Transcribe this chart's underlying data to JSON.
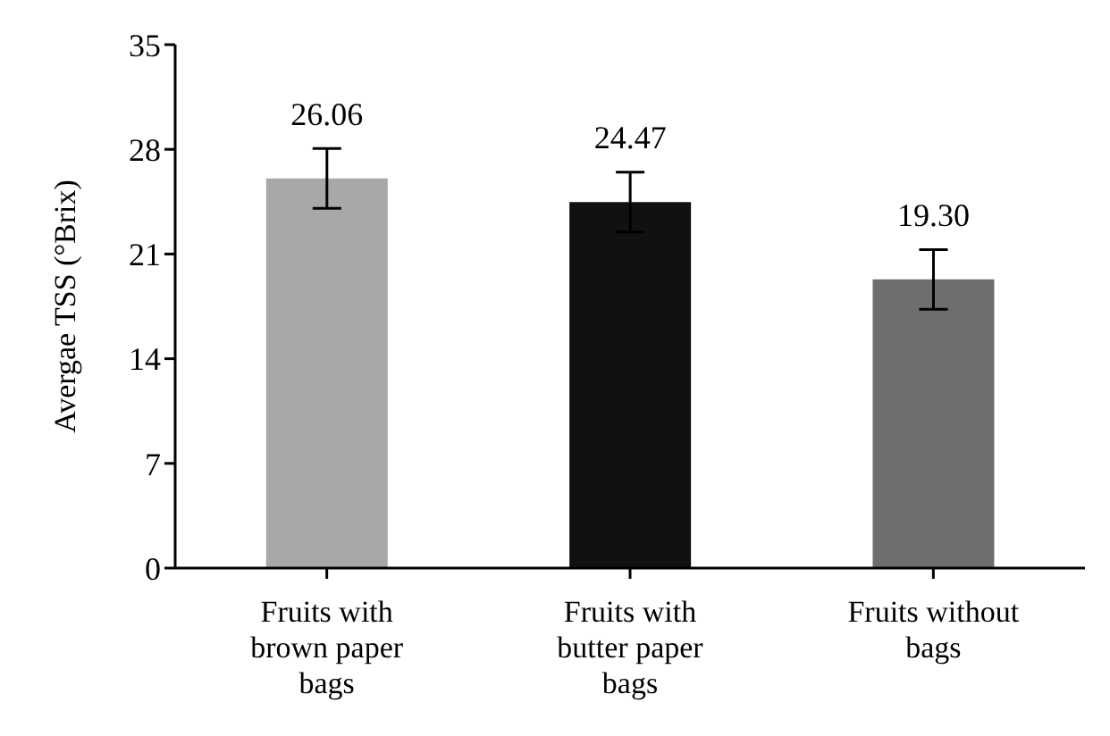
{
  "chart_data": {
    "type": "bar",
    "ylabel": "Avergae TSS (°Brix)",
    "categories": [
      "Fruits with brown paper bags",
      "Fruits with butter paper bags",
      "Fruits without bags"
    ],
    "values": [
      26.06,
      24.47,
      19.3
    ],
    "value_labels": [
      "26.06",
      "24.47",
      "19.30"
    ],
    "errors": [
      2.0,
      2.0,
      2.0
    ],
    "colors": [
      "#a8a8a8",
      "#111111",
      "#6e6e6e"
    ],
    "ylim": [
      0,
      35
    ],
    "yticks": [
      0,
      7,
      14,
      21,
      28,
      35
    ],
    "grid": false,
    "legend": false
  }
}
